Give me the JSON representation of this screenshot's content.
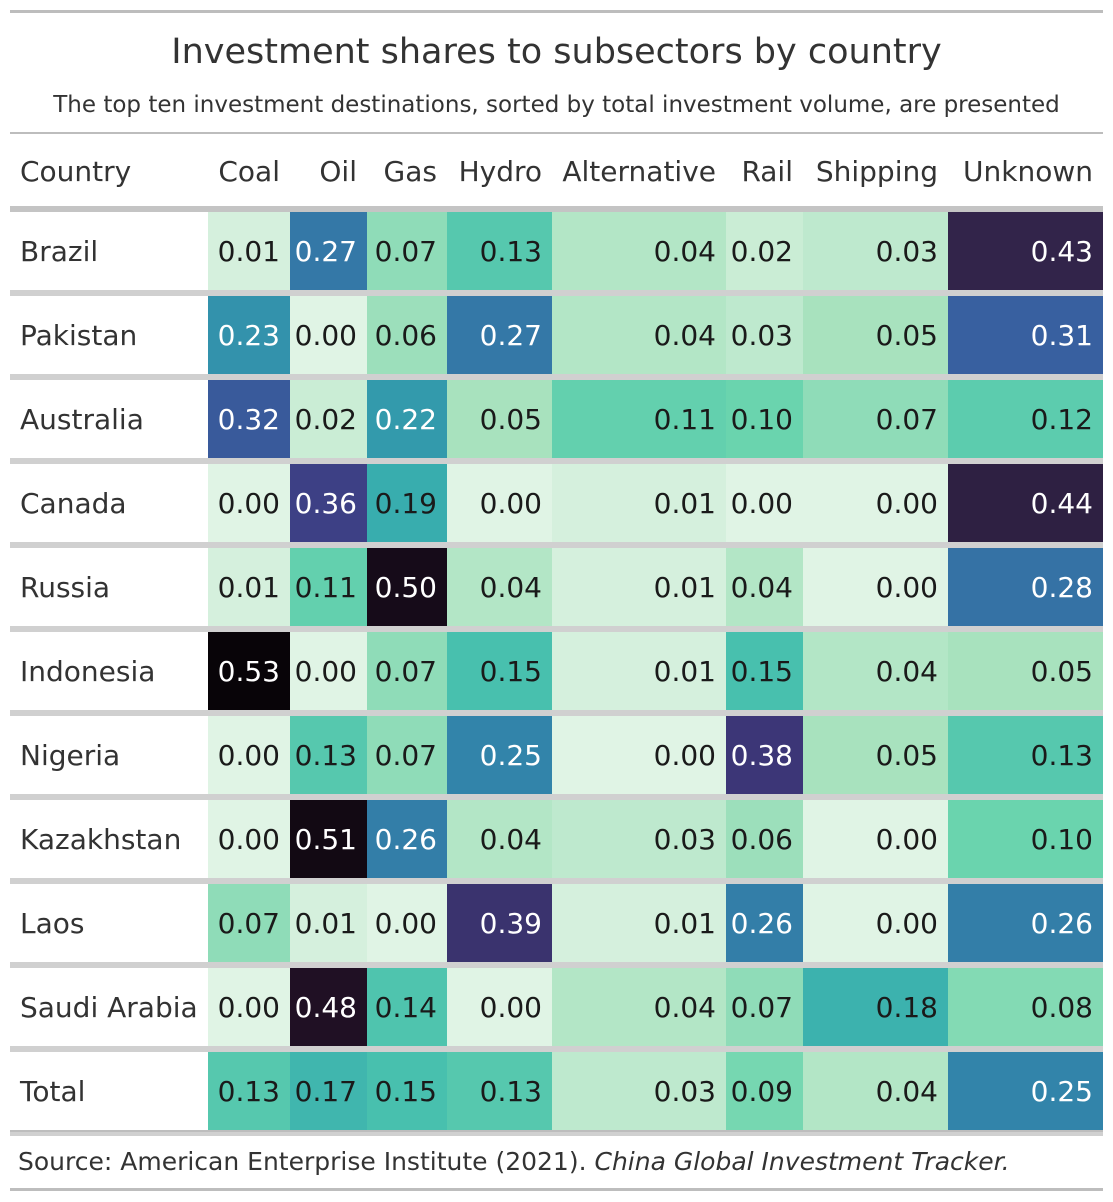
{
  "title": "Investment shares to subsectors by country",
  "subtitle": "The top ten investment destinations, sorted by total investment volume, are presented",
  "source": {
    "text": "Source: American Enterprise Institute (2021).",
    "italic": "China Global Investment Tracker."
  },
  "chart_data": {
    "type": "heatmap",
    "title": "Investment shares to subsectors by country",
    "row_header": "Country",
    "columns": [
      "Coal",
      "Oil",
      "Gas",
      "Hydro",
      "Alternative",
      "Rail",
      "Shipping",
      "Unknown"
    ],
    "rows": [
      {
        "country": "Brazil",
        "values": [
          "0.01",
          "0.27",
          "0.07",
          "0.13",
          "0.04",
          "0.02",
          "0.03",
          "0.43"
        ]
      },
      {
        "country": "Pakistan",
        "values": [
          "0.23",
          "0.00",
          "0.06",
          "0.27",
          "0.04",
          "0.03",
          "0.05",
          "0.31"
        ]
      },
      {
        "country": "Australia",
        "values": [
          "0.32",
          "0.02",
          "0.22",
          "0.05",
          "0.11",
          "0.10",
          "0.07",
          "0.12"
        ]
      },
      {
        "country": "Canada",
        "values": [
          "0.00",
          "0.36",
          "0.19",
          "0.00",
          "0.01",
          "0.00",
          "0.00",
          "0.44"
        ]
      },
      {
        "country": "Russia",
        "values": [
          "0.01",
          "0.11",
          "0.50",
          "0.04",
          "0.01",
          "0.04",
          "0.00",
          "0.28"
        ]
      },
      {
        "country": "Indonesia",
        "values": [
          "0.53",
          "0.00",
          "0.07",
          "0.15",
          "0.01",
          "0.15",
          "0.04",
          "0.05"
        ]
      },
      {
        "country": "Nigeria",
        "values": [
          "0.00",
          "0.13",
          "0.07",
          "0.25",
          "0.00",
          "0.38",
          "0.05",
          "0.13"
        ]
      },
      {
        "country": "Kazakhstan",
        "values": [
          "0.00",
          "0.51",
          "0.26",
          "0.04",
          "0.03",
          "0.06",
          "0.00",
          "0.10"
        ]
      },
      {
        "country": "Laos",
        "values": [
          "0.07",
          "0.01",
          "0.00",
          "0.39",
          "0.01",
          "0.26",
          "0.00",
          "0.26"
        ]
      },
      {
        "country": "Saudi Arabia",
        "values": [
          "0.00",
          "0.48",
          "0.14",
          "0.00",
          "0.04",
          "0.07",
          "0.18",
          "0.08"
        ]
      },
      {
        "country": "Total",
        "values": [
          "0.13",
          "0.17",
          "0.15",
          "0.13",
          "0.03",
          "0.09",
          "0.04",
          "0.25"
        ]
      }
    ]
  }
}
